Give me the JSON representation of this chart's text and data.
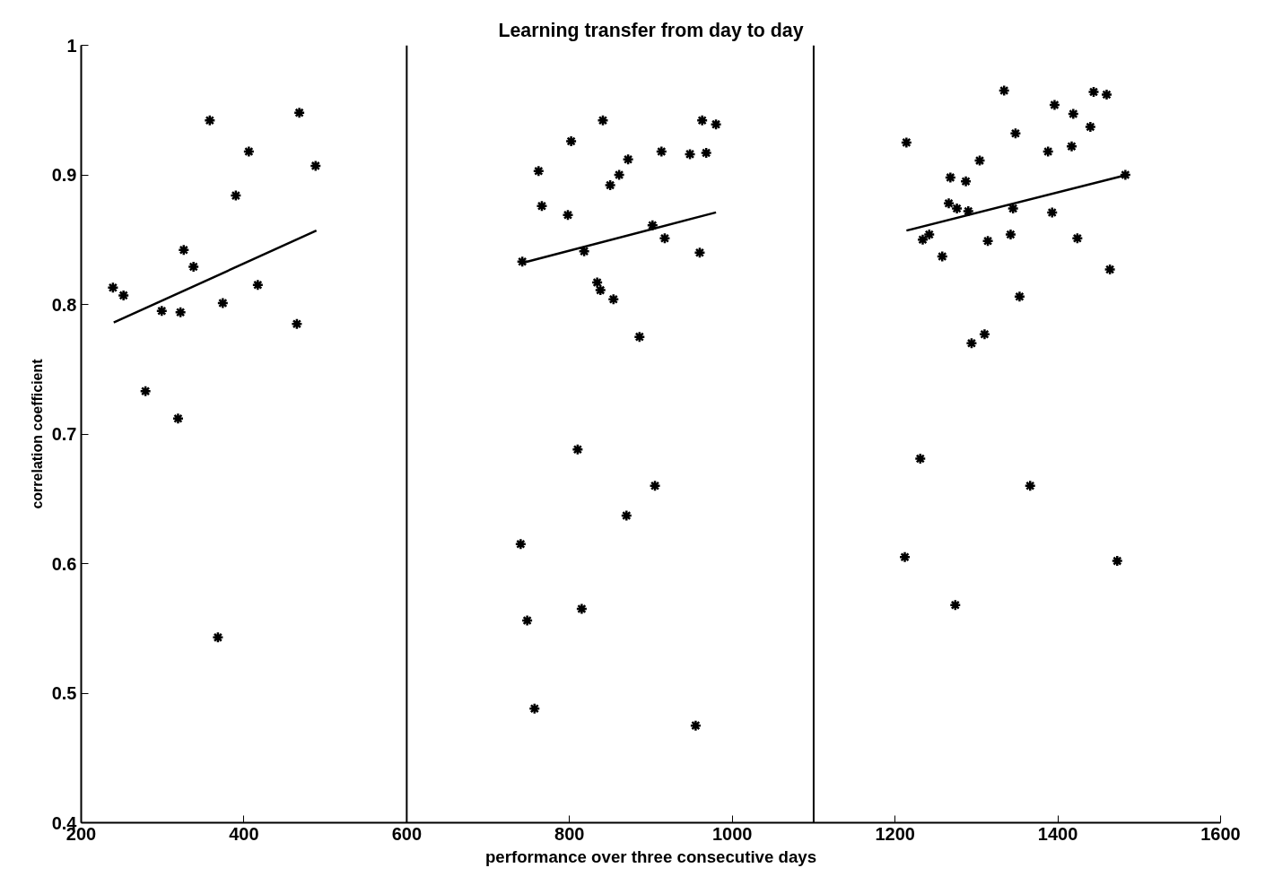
{
  "chart_data": {
    "type": "scatter",
    "title": "Learning transfer from day to day",
    "xlabel": "performance over three consecutive days",
    "ylabel": "correlation coefficient",
    "xlim": [
      200,
      1600
    ],
    "xticks": [
      200,
      400,
      600,
      800,
      1000,
      1200,
      1400,
      1600
    ],
    "ylim": [
      0.4,
      1
    ],
    "yticks": [
      0.4,
      0.5,
      0.6,
      0.7,
      0.8,
      0.9,
      1
    ],
    "grid": false,
    "marker": "cross",
    "ref_lines": [
      {
        "axis": "x",
        "value": 600,
        "color": "#000000"
      },
      {
        "axis": "x",
        "value": 1100,
        "color": "#000000"
      }
    ],
    "series": [
      {
        "color": "#000000",
        "x": [
          239,
          252,
          279,
          299,
          319,
          322,
          326,
          338,
          368,
          358,
          374,
          390,
          406,
          417,
          465,
          468,
          488
        ],
        "values": [
          0.813,
          0.807,
          0.733,
          0.795,
          0.712,
          0.794,
          0.842,
          0.829,
          0.543,
          0.942,
          0.801,
          0.884,
          0.918,
          0.815,
          0.785,
          0.948,
          0.907
        ]
      },
      {
        "type": "line",
        "marker": "none",
        "color": "#000000",
        "x": [
          240,
          489
        ],
        "values": [
          0.786,
          0.857
        ]
      },
      {
        "color": "#000000",
        "x": [
          762,
          766,
          742,
          740,
          748,
          757,
          802,
          798,
          810,
          815,
          818,
          841,
          834,
          838,
          854,
          850,
          861,
          872,
          886,
          905,
          870,
          902,
          913,
          917,
          955,
          948,
          960,
          968,
          963,
          980
        ],
        "values": [
          0.903,
          0.876,
          0.833,
          0.615,
          0.556,
          0.488,
          0.926,
          0.869,
          0.688,
          0.565,
          0.841,
          0.942,
          0.817,
          0.811,
          0.804,
          0.892,
          0.9,
          0.912,
          0.775,
          0.66,
          0.637,
          0.861,
          0.918,
          0.851,
          0.475,
          0.916,
          0.84,
          0.917,
          0.942,
          0.939
        ]
      },
      {
        "type": "line",
        "marker": "none",
        "color": "#000000",
        "x": [
          742,
          980
        ],
        "values": [
          0.832,
          0.871
        ]
      },
      {
        "color": "#000000",
        "x": [
          1214,
          1231,
          1212,
          1234,
          1242,
          1258,
          1274,
          1268,
          1287,
          1266,
          1276,
          1290,
          1304,
          1294,
          1310,
          1314,
          1334,
          1348,
          1345,
          1342,
          1353,
          1366,
          1388,
          1393,
          1396,
          1419,
          1417,
          1424,
          1440,
          1444,
          1460,
          1464,
          1473,
          1483
        ],
        "values": [
          0.925,
          0.681,
          0.605,
          0.85,
          0.854,
          0.837,
          0.568,
          0.898,
          0.895,
          0.878,
          0.874,
          0.872,
          0.911,
          0.77,
          0.777,
          0.849,
          0.965,
          0.932,
          0.874,
          0.854,
          0.806,
          0.66,
          0.918,
          0.871,
          0.954,
          0.947,
          0.922,
          0.851,
          0.937,
          0.964,
          0.962,
          0.827,
          0.602,
          0.9
        ]
      },
      {
        "type": "line",
        "marker": "none",
        "color": "#000000",
        "x": [
          1214,
          1485
        ],
        "values": [
          0.857,
          0.9
        ]
      }
    ]
  }
}
